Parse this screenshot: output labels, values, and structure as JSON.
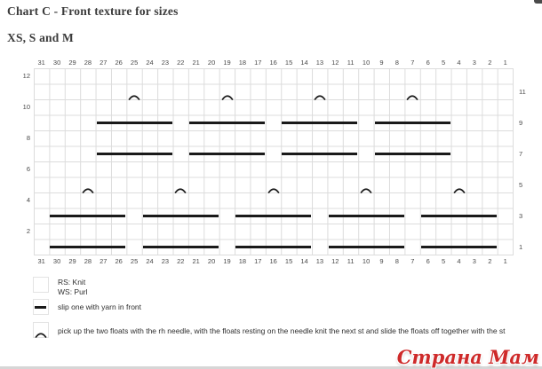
{
  "title": "Chart C - Front texture for sizes",
  "subtitle": "XS, S and M",
  "watermark": "Страна Мам",
  "colors": {
    "symbol": "#1a1a1a",
    "grid_line": "#dcdcdc",
    "label": "#4a4a4a",
    "title_text": "#3b3b3b",
    "watermark_red": "#ce2a2a"
  },
  "chart": {
    "type": "knitting-chart-grid",
    "columns": 31,
    "rows": 12,
    "column_labels": [
      "31",
      "30",
      "29",
      "28",
      "27",
      "26",
      "25",
      "24",
      "23",
      "22",
      "21",
      "20",
      "19",
      "18",
      "17",
      "16",
      "15",
      "14",
      "13",
      "12",
      "11",
      "10",
      "9",
      "8",
      "7",
      "6",
      "5",
      "4",
      "3",
      "2",
      "1"
    ],
    "left_row_labels": [
      {
        "row": 12,
        "label": "12"
      },
      {
        "row": 10,
        "label": "10"
      },
      {
        "row": 8,
        "label": "8"
      },
      {
        "row": 6,
        "label": "6"
      },
      {
        "row": 4,
        "label": "4"
      },
      {
        "row": 2,
        "label": "2"
      }
    ],
    "right_row_labels": [
      {
        "row": 11,
        "label": "11"
      },
      {
        "row": 9,
        "label": "9"
      },
      {
        "row": 7,
        "label": "7"
      },
      {
        "row": 5,
        "label": "5"
      },
      {
        "row": 3,
        "label": "3"
      },
      {
        "row": 1,
        "label": "1"
      }
    ],
    "bars": [
      {
        "row": 9,
        "from": 27,
        "to": 23
      },
      {
        "row": 9,
        "from": 21,
        "to": 17
      },
      {
        "row": 9,
        "from": 15,
        "to": 11
      },
      {
        "row": 9,
        "from": 9,
        "to": 5
      },
      {
        "row": 7,
        "from": 27,
        "to": 23
      },
      {
        "row": 7,
        "from": 21,
        "to": 17
      },
      {
        "row": 7,
        "from": 15,
        "to": 11
      },
      {
        "row": 7,
        "from": 9,
        "to": 5
      },
      {
        "row": 3,
        "from": 30,
        "to": 26
      },
      {
        "row": 3,
        "from": 24,
        "to": 20
      },
      {
        "row": 3,
        "from": 18,
        "to": 14
      },
      {
        "row": 3,
        "from": 12,
        "to": 8
      },
      {
        "row": 3,
        "from": 6,
        "to": 2
      },
      {
        "row": 1,
        "from": 30,
        "to": 26
      },
      {
        "row": 1,
        "from": 24,
        "to": 20
      },
      {
        "row": 1,
        "from": 18,
        "to": 14
      },
      {
        "row": 1,
        "from": 12,
        "to": 8
      },
      {
        "row": 1,
        "from": 6,
        "to": 2
      }
    ],
    "carets": [
      {
        "row": 11,
        "col": 25
      },
      {
        "row": 11,
        "col": 19
      },
      {
        "row": 11,
        "col": 13
      },
      {
        "row": 11,
        "col": 7
      },
      {
        "row": 5,
        "col": 28
      },
      {
        "row": 5,
        "col": 22
      },
      {
        "row": 5,
        "col": 16
      },
      {
        "row": 5,
        "col": 10
      },
      {
        "row": 5,
        "col": 4
      }
    ]
  },
  "legend": [
    {
      "symbol": "empty-square",
      "lines": [
        "RS: Knit",
        "WS: Purl"
      ]
    },
    {
      "symbol": "bar",
      "lines": [
        "slip one with yarn in front"
      ]
    },
    {
      "symbol": "caret",
      "lines": [
        "pick up the two floats with the rh needle, with the floats resting on the needle knit the next st and slide the floats off together with the st"
      ]
    }
  ]
}
